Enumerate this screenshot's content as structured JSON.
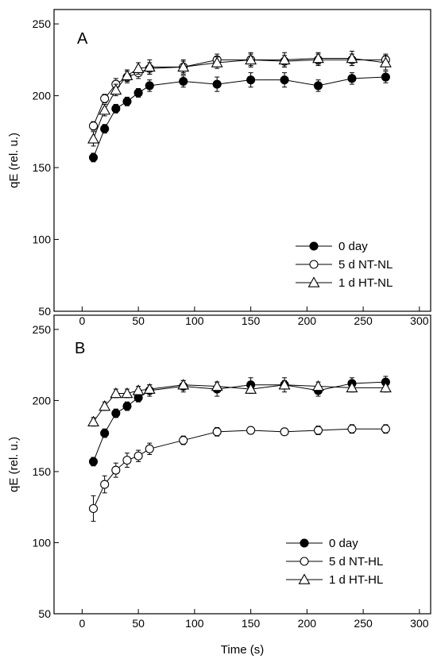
{
  "chart_data": [
    {
      "type": "line",
      "panel_label": "A",
      "xlabel": "",
      "ylabel": "qE (rel. u.)",
      "xlim": [
        -25,
        310
      ],
      "ylim": [
        50,
        260
      ],
      "xticks": [
        0,
        50,
        100,
        150,
        200,
        250,
        300
      ],
      "yticks": [
        50,
        100,
        150,
        200,
        250
      ],
      "legend_position": "bottom-right",
      "x": [
        10,
        20,
        30,
        40,
        50,
        60,
        90,
        120,
        150,
        180,
        210,
        240,
        270
      ],
      "series": [
        {
          "name": "0 day",
          "marker": "filled-circle",
          "values": [
            157,
            177,
            191,
            196,
            202,
            207,
            210,
            208,
            211,
            211,
            207,
            212,
            213
          ],
          "errors": [
            3,
            3,
            3,
            3,
            3,
            4,
            4,
            5,
            5,
            5,
            4,
            4,
            4
          ]
        },
        {
          "name": "5 d NT-NL",
          "marker": "open-circle",
          "values": [
            179,
            198,
            208,
            213,
            216,
            219,
            220,
            225,
            225,
            224,
            225,
            225,
            225
          ],
          "errors": [
            3,
            3,
            4,
            4,
            4,
            4,
            4,
            4,
            4,
            4,
            4,
            4,
            4
          ]
        },
        {
          "name": "1 d HT-NL",
          "marker": "open-triangle",
          "values": [
            170,
            190,
            204,
            214,
            219,
            220,
            220,
            223,
            225,
            225,
            226,
            226,
            223
          ],
          "errors": [
            5,
            4,
            4,
            4,
            4,
            5,
            5,
            4,
            5,
            5,
            4,
            5,
            5
          ]
        }
      ]
    },
    {
      "type": "line",
      "panel_label": "B",
      "xlabel": "Time (s)",
      "ylabel": "qE (rel. u.)",
      "xlim": [
        -25,
        310
      ],
      "ylim": [
        50,
        260
      ],
      "xticks": [
        0,
        50,
        100,
        150,
        200,
        250,
        300
      ],
      "yticks": [
        50,
        100,
        150,
        200,
        250
      ],
      "legend_position": "bottom-right",
      "x": [
        10,
        20,
        30,
        40,
        50,
        60,
        90,
        120,
        150,
        180,
        210,
        240,
        270
      ],
      "series": [
        {
          "name": "0 day",
          "marker": "filled-circle",
          "values": [
            157,
            177,
            191,
            196,
            202,
            207,
            210,
            208,
            211,
            211,
            207,
            212,
            213
          ],
          "errors": [
            3,
            3,
            3,
            3,
            3,
            4,
            4,
            5,
            5,
            5,
            4,
            4,
            4
          ]
        },
        {
          "name": "5 d NT-HL",
          "marker": "open-circle",
          "values": [
            124,
            141,
            151,
            158,
            161,
            166,
            172,
            178,
            179,
            178,
            179,
            180,
            180
          ],
          "errors": [
            9,
            6,
            5,
            5,
            4,
            4,
            3,
            3,
            2,
            2,
            3,
            3,
            3
          ]
        },
        {
          "name": "1 d HT-HL",
          "marker": "open-triangle",
          "values": [
            185,
            196,
            205,
            205,
            207,
            208,
            211,
            210,
            208,
            211,
            210,
            209,
            209
          ],
          "errors": [
            3,
            3,
            3,
            3,
            3,
            3,
            3,
            3,
            3,
            3,
            3,
            3,
            3
          ]
        }
      ]
    }
  ]
}
